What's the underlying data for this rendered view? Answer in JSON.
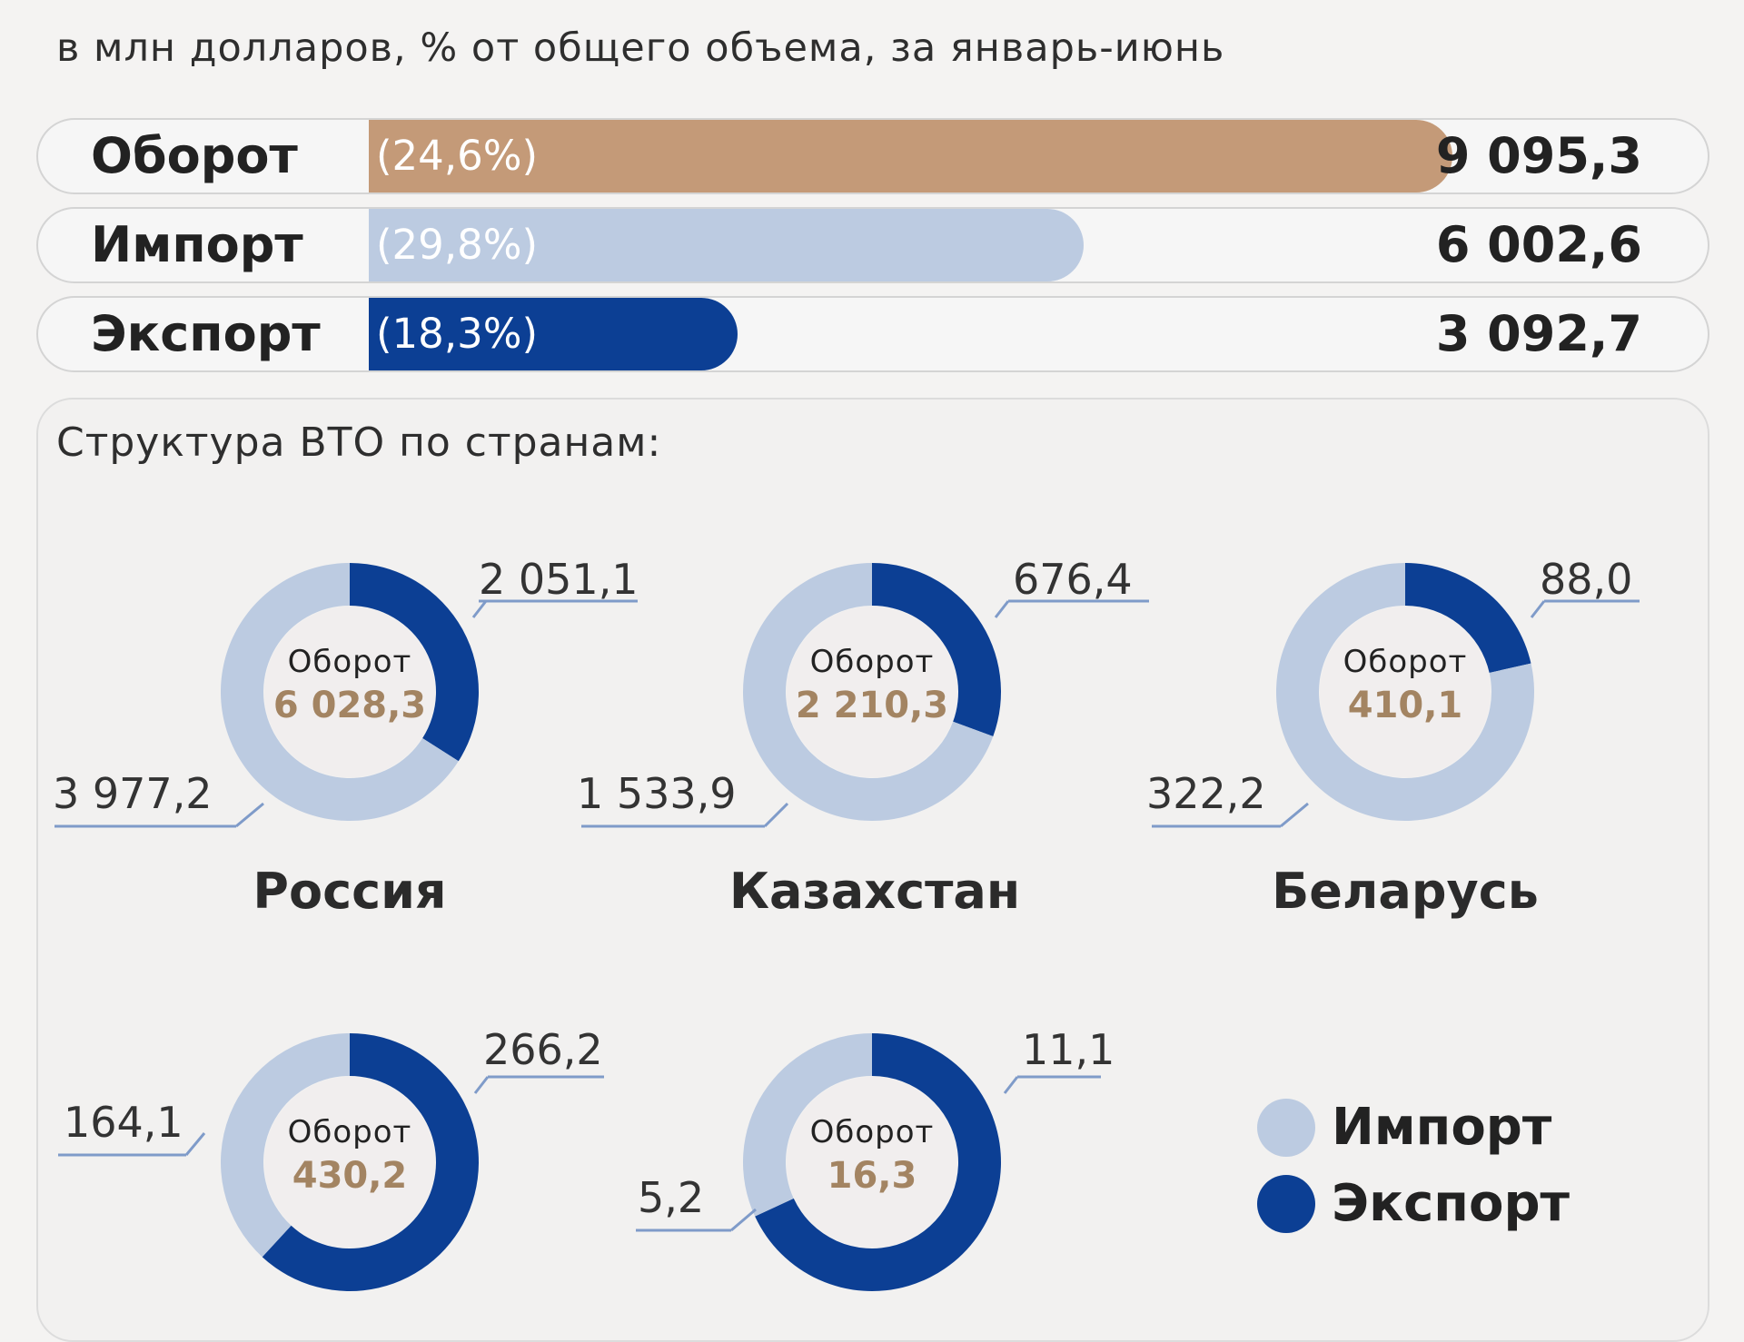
{
  "subtitle": "в млн долларов, % от общего объема, за январь-июнь",
  "colors": {
    "turnover": "#c49a78",
    "import": "#bccbe1",
    "export": "#0c3f94",
    "total_text": "#a38462",
    "value_text": "#333333"
  },
  "bars": [
    {
      "label": "Оборот",
      "share": "(24,6%)",
      "value": "9 095,3",
      "amount": 9095.3
    },
    {
      "label": "Импорт",
      "share": "(29,8%)",
      "value": "6 002,6",
      "amount": 6002.6
    },
    {
      "label": "Экспорт",
      "share": "(18,3%)",
      "value": "3 092,7",
      "amount": 3092.7
    }
  ],
  "panel": {
    "title": "Структура ВТО по странам:"
  },
  "chart_data": [
    {
      "type": "donut",
      "title": "Россия",
      "center_label": "Оборот",
      "total": "6 028,3",
      "series": [
        {
          "name": "Экспорт",
          "value": 2051.1,
          "label": "2 051,1"
        },
        {
          "name": "Импорт",
          "value": 3977.2,
          "label": "3 977,2"
        }
      ]
    },
    {
      "type": "donut",
      "title": "Казахстан",
      "center_label": "Оборот",
      "total": "2 210,3",
      "series": [
        {
          "name": "Экспорт",
          "value": 676.4,
          "label": "676,4"
        },
        {
          "name": "Импорт",
          "value": 1533.9,
          "label": "1 533,9"
        }
      ]
    },
    {
      "type": "donut",
      "title": "Беларусь",
      "center_label": "Оборот",
      "total": "410,1",
      "series": [
        {
          "name": "Экспорт",
          "value": 88.0,
          "label": "88,0"
        },
        {
          "name": "Импорт",
          "value": 322.2,
          "label": "322,2"
        }
      ]
    },
    {
      "type": "donut",
      "title": "",
      "center_label": "Оборот",
      "total": "430,2",
      "series": [
        {
          "name": "Экспорт",
          "value": 266.2,
          "label": "266,2"
        },
        {
          "name": "Импорт",
          "value": 164.1,
          "label": "164,1"
        }
      ]
    },
    {
      "type": "donut",
      "title": "",
      "center_label": "Оборот",
      "total": "16,3",
      "series": [
        {
          "name": "Экспорт",
          "value": 11.1,
          "label": "11,1"
        },
        {
          "name": "Импорт",
          "value": 5.2,
          "label": "5,2"
        }
      ]
    }
  ],
  "legend": [
    {
      "label": "Импорт",
      "color": "#bccbe1"
    },
    {
      "label": "Экспорт",
      "color": "#0c3f94"
    }
  ]
}
